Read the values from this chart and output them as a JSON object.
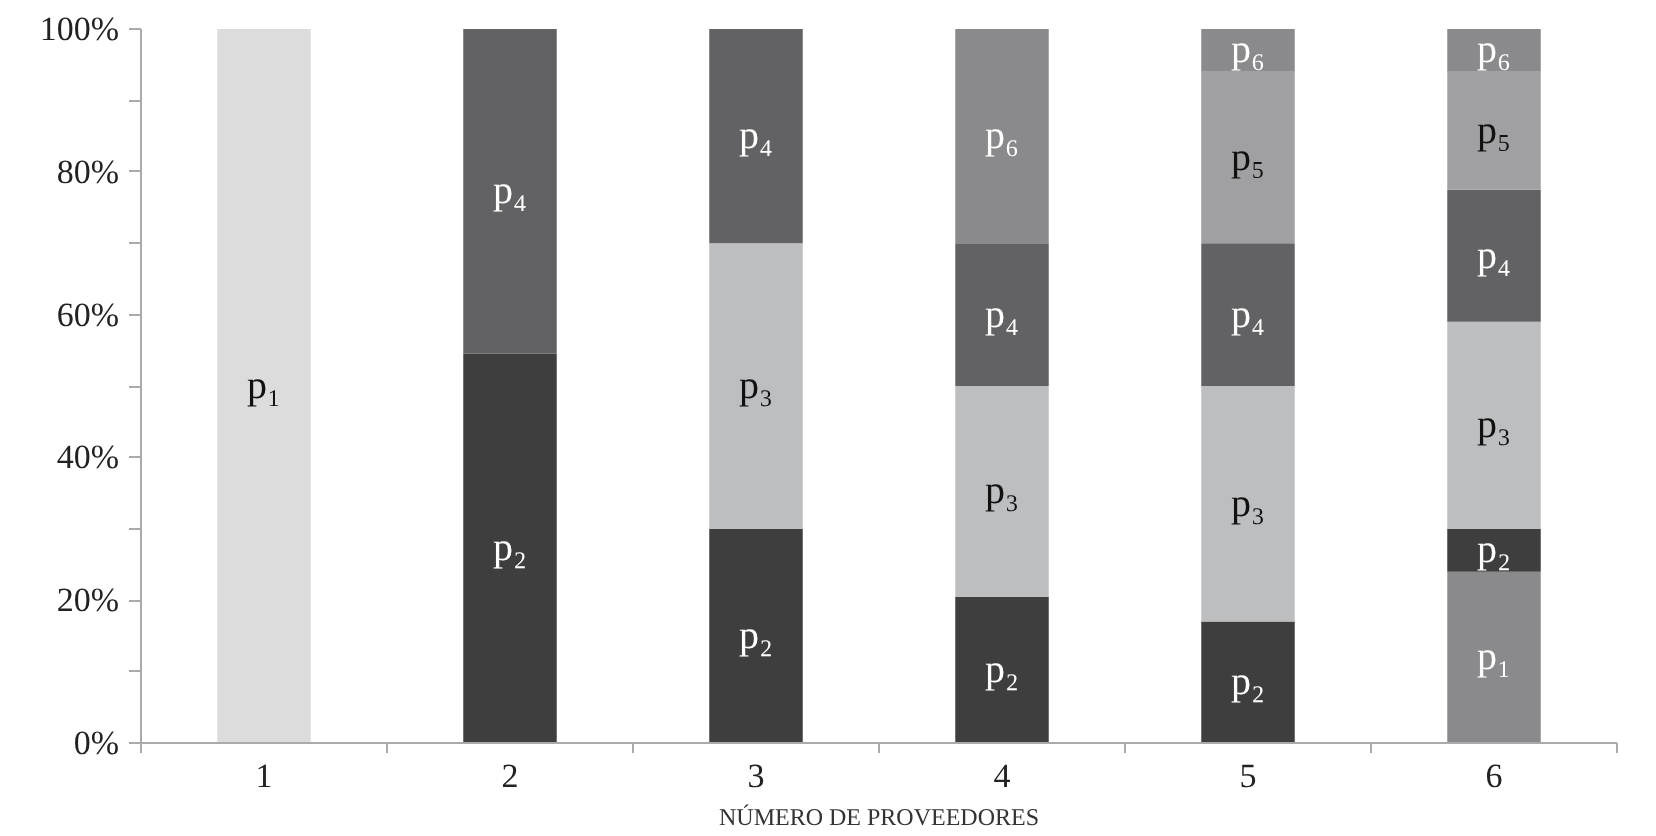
{
  "chart_data": {
    "type": "bar",
    "stacked": true,
    "xlabel": "NÚMERO DE PROVEEDORES",
    "categories": [
      "1",
      "2",
      "3",
      "4",
      "5",
      "6"
    ],
    "ylim": [
      0,
      100
    ],
    "yticks": [
      {
        "value": 0,
        "label": "0%"
      },
      {
        "value": 10,
        "label": null
      },
      {
        "value": 20,
        "label": "20%"
      },
      {
        "value": 30,
        "label": null
      },
      {
        "value": 40,
        "label": "40%"
      },
      {
        "value": 50,
        "label": null
      },
      {
        "value": 60,
        "label": "60%"
      },
      {
        "value": 70,
        "label": null
      },
      {
        "value": 80,
        "label": "80%"
      },
      {
        "value": 90,
        "label": null
      },
      {
        "value": 100,
        "label": "100%"
      }
    ],
    "grid": false,
    "legend": false,
    "series": [
      {
        "name": "p₁",
        "values": [
          100,
          null,
          null,
          null,
          null,
          24
        ],
        "colors": [
          "#dcdcdd",
          "#dcdcdd",
          "#dcdcdd",
          "#dcdcdd",
          "#dcdcdd",
          "#8a8a8c"
        ]
      },
      {
        "name": "p₂",
        "values": [
          null,
          54.5,
          30,
          20.5,
          17,
          6
        ],
        "colors": [
          "#3e3e3e",
          "#3e3e3e",
          "#3e3e3e",
          "#3e3e3e",
          "#3e3e3e",
          "#3e3e3e"
        ]
      },
      {
        "name": "p₃",
        "values": [
          null,
          null,
          40,
          29.5,
          33,
          29
        ],
        "colors": [
          "#bdbec0",
          "#bdbec0",
          "#bdbec0",
          "#bdbec0",
          "#bdbec0",
          "#bdbec0"
        ]
      },
      {
        "name": "p₄",
        "values": [
          null,
          45.5,
          30,
          20,
          20,
          18.5
        ],
        "colors": [
          "#626264",
          "#626264",
          "#626264",
          "#626264",
          "#626264",
          "#626264"
        ]
      },
      {
        "name": "p₅",
        "values": [
          null,
          null,
          null,
          null,
          24,
          16.5
        ],
        "colors": [
          "#a0a0a2",
          "#a0a0a2",
          "#a0a0a2",
          "#a0a0a2",
          "#a0a0a2",
          "#a0a0a2"
        ]
      },
      {
        "name": "p₆",
        "values": [
          null,
          null,
          null,
          30,
          6,
          6
        ],
        "colors": [
          "#8a8a8c",
          "#8a8a8c",
          "#8a8a8c",
          "#8a8a8c",
          "#8a8a8c",
          "#8a8a8c"
        ]
      }
    ]
  }
}
